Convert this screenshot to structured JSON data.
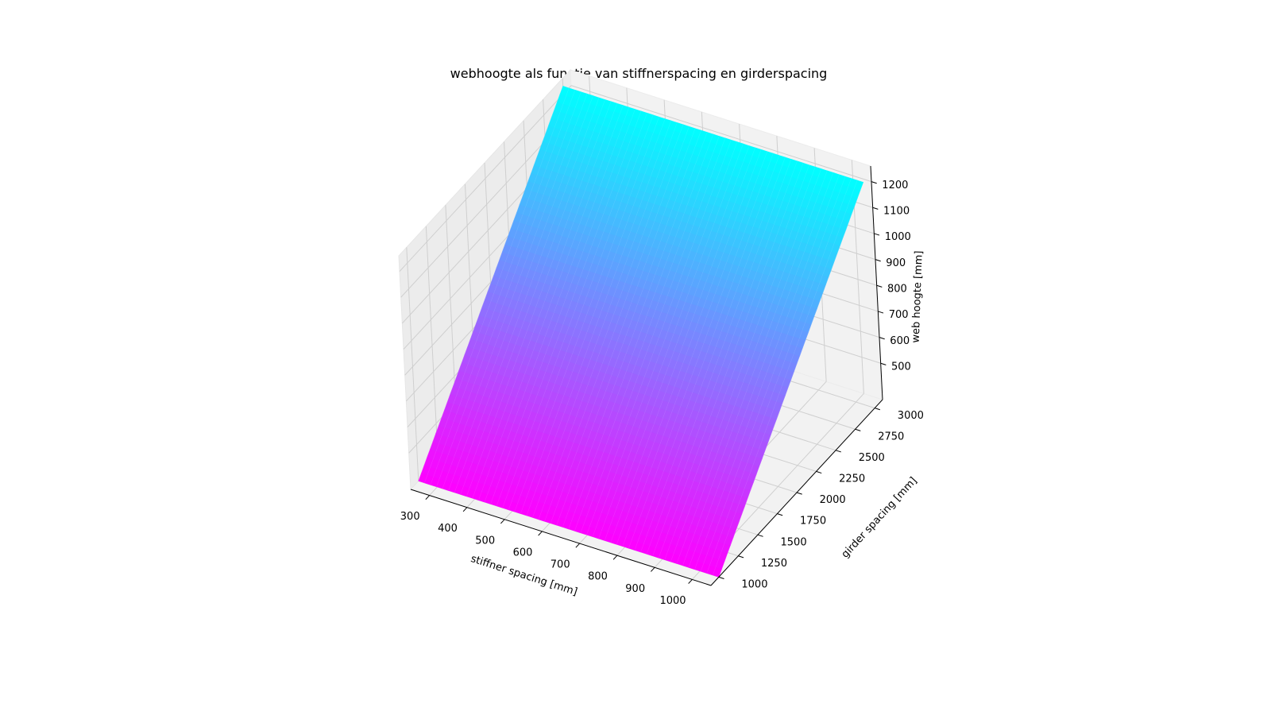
{
  "chart_data": {
    "type": "surface",
    "title": "webhoogte als functie van stiffnerspacing en girderspacing",
    "xlabel": "stiffner spacing [mm]",
    "ylabel": "girder spacing [mm]",
    "zlabel": "web hoogte [mm]",
    "x_ticks": [
      300,
      400,
      500,
      600,
      700,
      800,
      900,
      1000
    ],
    "y_ticks": [
      1000,
      1250,
      1500,
      1750,
      2000,
      2250,
      2500,
      2750,
      3000
    ],
    "z_ticks": [
      500,
      600,
      700,
      800,
      900,
      1000,
      1100,
      1200
    ],
    "xlim": [
      250,
      1050
    ],
    "ylim": [
      900,
      3100
    ],
    "zlim": [
      360,
      1260
    ],
    "surface": {
      "x_range": [
        250,
        1050
      ],
      "y_range": [
        1000,
        3000
      ],
      "z_at_ymin": 360,
      "z_at_ymax": 1230,
      "z_depends_on_x": false
    },
    "colormap": "cool",
    "colormap_low": "#ff00ff",
    "colormap_high": "#00ffff",
    "grid": true
  }
}
